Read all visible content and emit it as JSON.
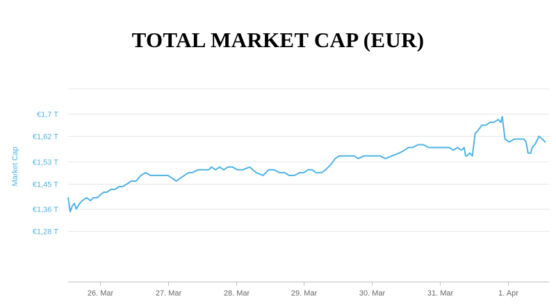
{
  "chart_data": {
    "type": "line",
    "title": "TOTAL MARKET CAP (EUR)",
    "xlabel": "",
    "ylabel": "Market Cap",
    "x_tick_labels": [
      "26. Mar",
      "27. Mar",
      "28. Mar",
      "29. Mar",
      "30. Mar",
      "31. Mar",
      "1. Apr"
    ],
    "y_tick_labels": [
      "€1,28 T",
      "€1,36 T",
      "€1,45 T",
      "€1,53 T",
      "€1,62 T",
      "€1,7 T"
    ],
    "y_tick_values": [
      1.28,
      1.36,
      1.45,
      1.53,
      1.62,
      1.7
    ],
    "ylim": [
      1.1,
      1.79
    ],
    "xlim_days": [
      -0.47,
      6.55
    ],
    "grid": true,
    "line_color": "#4db3e6",
    "grid_color": "#e6e6e6",
    "series": [
      {
        "name": "",
        "unit": "EUR trillion",
        "x_days": [
          -0.47,
          -0.44,
          -0.41,
          -0.38,
          -0.35,
          -0.3,
          -0.26,
          -0.2,
          -0.14,
          -0.1,
          -0.04,
          0.0,
          0.05,
          0.1,
          0.16,
          0.22,
          0.28,
          0.33,
          0.4,
          0.46,
          0.53,
          0.6,
          0.67,
          0.74,
          0.8,
          0.87,
          0.94,
          1.0,
          1.06,
          1.12,
          1.18,
          1.24,
          1.3,
          1.36,
          1.44,
          1.52,
          1.6,
          1.64,
          1.7,
          1.76,
          1.82,
          1.88,
          1.95,
          2.02,
          2.1,
          2.2,
          2.3,
          2.4,
          2.48,
          2.56,
          2.64,
          2.72,
          2.78,
          2.86,
          2.94,
          3.0,
          3.06,
          3.12,
          3.18,
          3.26,
          3.32,
          3.4,
          3.46,
          3.52,
          3.58,
          3.66,
          3.74,
          3.8,
          3.88,
          3.96,
          4.04,
          4.12,
          4.2,
          4.3,
          4.4,
          4.48,
          4.54,
          4.6,
          4.68,
          4.76,
          4.84,
          4.92,
          5.0,
          5.08,
          5.14,
          5.2,
          5.26,
          5.32,
          5.36,
          5.38,
          5.4,
          5.44,
          5.48,
          5.52,
          5.56,
          5.62,
          5.68,
          5.74,
          5.8,
          5.86,
          5.9,
          5.92,
          5.96,
          6.02,
          6.1,
          6.18,
          6.24,
          6.27,
          6.3,
          6.34,
          6.36,
          6.4,
          6.46,
          6.51,
          6.55
        ],
        "y_values": [
          1.4,
          1.35,
          1.37,
          1.38,
          1.36,
          1.38,
          1.39,
          1.4,
          1.39,
          1.4,
          1.4,
          1.41,
          1.42,
          1.42,
          1.43,
          1.43,
          1.44,
          1.44,
          1.45,
          1.46,
          1.46,
          1.48,
          1.49,
          1.48,
          1.48,
          1.48,
          1.48,
          1.48,
          1.47,
          1.46,
          1.47,
          1.48,
          1.49,
          1.49,
          1.5,
          1.5,
          1.5,
          1.51,
          1.5,
          1.51,
          1.5,
          1.51,
          1.51,
          1.5,
          1.5,
          1.51,
          1.49,
          1.48,
          1.5,
          1.5,
          1.49,
          1.49,
          1.48,
          1.48,
          1.49,
          1.49,
          1.5,
          1.5,
          1.49,
          1.49,
          1.5,
          1.52,
          1.54,
          1.55,
          1.55,
          1.55,
          1.55,
          1.54,
          1.55,
          1.55,
          1.55,
          1.55,
          1.54,
          1.55,
          1.56,
          1.57,
          1.58,
          1.58,
          1.59,
          1.59,
          1.58,
          1.58,
          1.58,
          1.58,
          1.58,
          1.57,
          1.58,
          1.57,
          1.58,
          1.55,
          1.55,
          1.56,
          1.55,
          1.63,
          1.64,
          1.66,
          1.66,
          1.67,
          1.67,
          1.68,
          1.67,
          1.69,
          1.61,
          1.6,
          1.61,
          1.61,
          1.61,
          1.6,
          1.56,
          1.56,
          1.58,
          1.59,
          1.62,
          1.61,
          1.6
        ]
      }
    ]
  }
}
